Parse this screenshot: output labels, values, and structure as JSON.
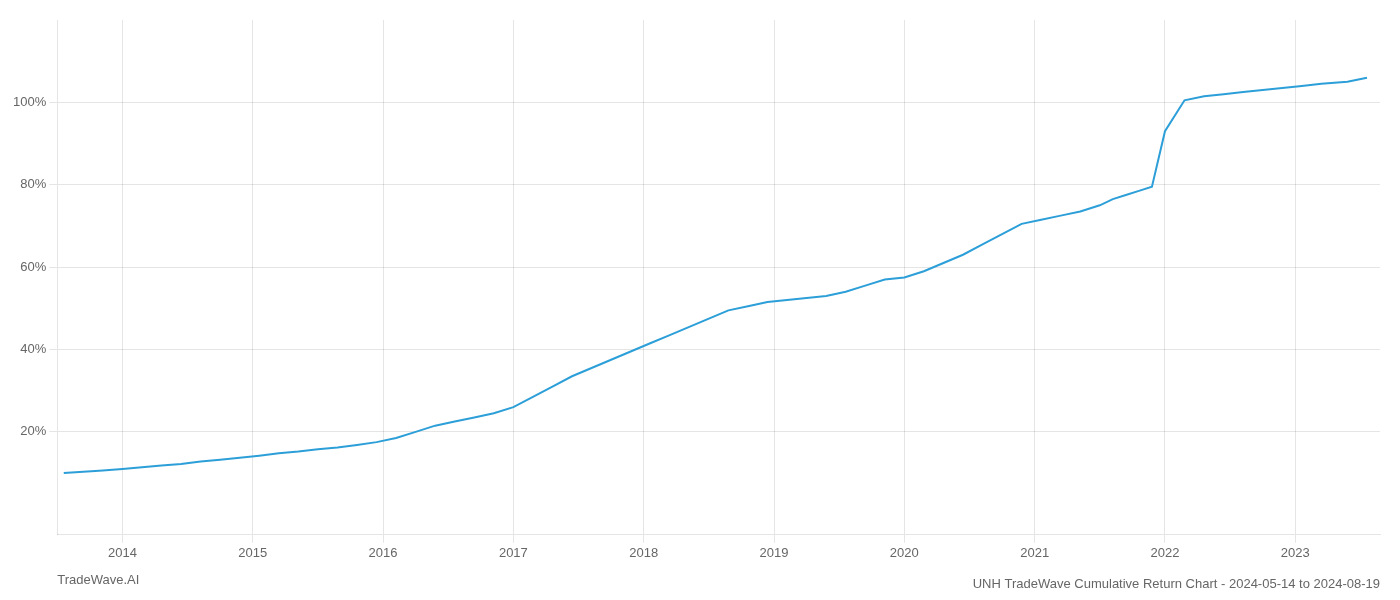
{
  "chart_data": {
    "type": "line",
    "title": "UNH TradeWave Cumulative Return Chart - 2024-05-14 to 2024-08-19",
    "annotations": [
      "TradeWave.AI"
    ],
    "x": [
      2013.55,
      2013.7,
      2013.85,
      2014.0,
      2014.15,
      2014.3,
      2014.45,
      2014.6,
      2014.75,
      2014.9,
      2015.05,
      2015.2,
      2015.35,
      2015.5,
      2015.65,
      2015.8,
      2015.95,
      2016.1,
      2016.25,
      2016.4,
      2016.55,
      2016.7,
      2016.85,
      2017.0,
      2017.15,
      2017.3,
      2017.45,
      2017.6,
      2017.75,
      2017.9,
      2018.05,
      2018.2,
      2018.35,
      2018.5,
      2018.65,
      2018.8,
      2018.95,
      2019.1,
      2019.25,
      2019.4,
      2019.55,
      2019.7,
      2019.85,
      2020.0,
      2020.15,
      2020.3,
      2020.45,
      2020.6,
      2020.75,
      2020.9,
      2021.05,
      2021.2,
      2021.35,
      2021.5,
      2021.6,
      2021.7,
      2021.8,
      2021.9,
      2022.0,
      2022.15,
      2022.3,
      2022.45,
      2022.6,
      2022.75,
      2022.9,
      2023.05,
      2023.2,
      2023.4,
      2023.55
    ],
    "values": [
      10.0,
      10.3,
      10.6,
      11.0,
      11.4,
      11.8,
      12.2,
      12.8,
      13.2,
      13.7,
      14.2,
      14.8,
      15.2,
      15.8,
      16.2,
      16.8,
      17.5,
      18.5,
      20.0,
      21.5,
      22.5,
      23.5,
      24.5,
      26.0,
      28.5,
      31.0,
      33.5,
      35.5,
      37.5,
      39.5,
      41.5,
      43.5,
      45.5,
      47.5,
      49.5,
      50.5,
      51.5,
      52.0,
      52.5,
      53.0,
      54.0,
      55.5,
      57.0,
      57.5,
      59.0,
      61.0,
      63.0,
      65.5,
      68.0,
      70.5,
      71.5,
      72.5,
      73.5,
      75.0,
      76.5,
      77.5,
      78.5,
      79.5,
      93.0,
      100.5,
      101.5,
      102.0,
      102.5,
      103.0,
      103.5,
      104.0,
      104.5,
      105.0,
      106.0
    ],
    "color": "#2d9fd8",
    "xlim": [
      2013.5,
      2023.65
    ],
    "xticks": [
      2014,
      2015,
      2016,
      2017,
      2018,
      2019,
      2020,
      2021,
      2022,
      2023
    ],
    "ylim": [
      -5,
      120
    ],
    "yticks": [
      {
        "value": 20,
        "label": "20%"
      },
      {
        "value": 40,
        "label": "40%"
      },
      {
        "value": 60,
        "label": "60%"
      },
      {
        "value": 80,
        "label": "80%"
      },
      {
        "value": 100,
        "label": "100%"
      }
    ],
    "grid": true
  }
}
